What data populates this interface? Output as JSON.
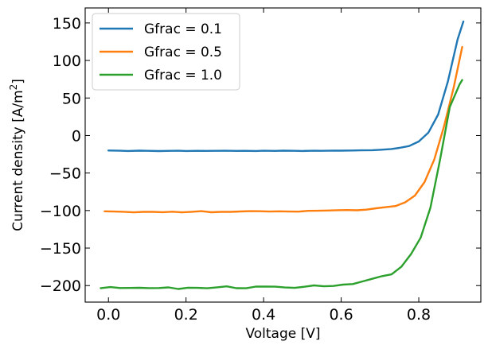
{
  "chart_data": {
    "type": "line",
    "xlabel": "Voltage [V]",
    "ylabel_main": "Current density [A/m",
    "ylabel_sup": "2",
    "ylabel_close": "]",
    "xlim": [
      -0.06,
      0.96
    ],
    "ylim": [
      -222,
      170
    ],
    "x_ticks": [
      0.0,
      0.2,
      0.4,
      0.6,
      0.8
    ],
    "x_tick_labels": [
      "0.0",
      "0.2",
      "0.4",
      "0.6",
      "0.8"
    ],
    "y_ticks": [
      -200,
      -150,
      -100,
      -50,
      0,
      50,
      100,
      150
    ],
    "y_tick_labels": [
      "−200",
      "−150",
      "−100",
      "−50",
      "0",
      "50",
      "100",
      "150"
    ],
    "grid": false,
    "legend_position": "top-left",
    "series": [
      {
        "name": "Gfrac = 0.1",
        "color": "#1f77b4",
        "x": [
          0.0,
          0.03,
          0.05,
          0.08,
          0.1,
          0.13,
          0.15,
          0.18,
          0.2,
          0.23,
          0.25,
          0.28,
          0.3,
          0.33,
          0.35,
          0.38,
          0.4,
          0.43,
          0.45,
          0.48,
          0.5,
          0.53,
          0.55,
          0.58,
          0.6,
          0.63,
          0.65,
          0.68,
          0.7,
          0.73,
          0.75,
          0.775,
          0.8,
          0.825,
          0.85,
          0.875,
          0.9,
          0.915
        ],
        "y": [
          -20,
          -20.3,
          -20.6,
          -20.2,
          -20.4,
          -20.7,
          -20.5,
          -20.3,
          -20.6,
          -20.4,
          -20.5,
          -20.4,
          -20.3,
          -20.5,
          -20.4,
          -20.6,
          -20.3,
          -20.5,
          -20.2,
          -20.4,
          -20.6,
          -20.3,
          -20.4,
          -20.1,
          -20.2,
          -20.0,
          -19.8,
          -19.5,
          -19.0,
          -18.0,
          -16.5,
          -14.0,
          -8.0,
          4.0,
          28.0,
          72.0,
          128.0,
          152.0
        ]
      },
      {
        "name": "Gfrac = 0.5",
        "color": "#ff7f0e",
        "x": [
          -0.01,
          0.015,
          0.04,
          0.065,
          0.09,
          0.115,
          0.14,
          0.165,
          0.19,
          0.215,
          0.24,
          0.265,
          0.29,
          0.315,
          0.34,
          0.365,
          0.39,
          0.415,
          0.44,
          0.465,
          0.49,
          0.515,
          0.54,
          0.565,
          0.59,
          0.615,
          0.64,
          0.665,
          0.69,
          0.715,
          0.74,
          0.765,
          0.79,
          0.815,
          0.84,
          0.865,
          0.89,
          0.912
        ],
        "y": [
          -101,
          -101.3,
          -101.6,
          -102.4,
          -101.7,
          -101.8,
          -102.2,
          -101.5,
          -102.4,
          -101.6,
          -100.8,
          -102.3,
          -101.7,
          -101.8,
          -101.2,
          -100.8,
          -100.9,
          -101.3,
          -101.0,
          -101.3,
          -101.4,
          -100.4,
          -100.3,
          -100.0,
          -99.5,
          -99.3,
          -99.6,
          -98.8,
          -97.0,
          -95.5,
          -94.0,
          -89.0,
          -80.0,
          -62.0,
          -32.0,
          12.0,
          64.0,
          118.0
        ]
      },
      {
        "name": "Gfrac = 1.0",
        "color": "#2ca02c",
        "x": [
          -0.02,
          0.005,
          0.03,
          0.055,
          0.08,
          0.105,
          0.13,
          0.155,
          0.18,
          0.205,
          0.23,
          0.255,
          0.28,
          0.305,
          0.33,
          0.355,
          0.38,
          0.405,
          0.43,
          0.455,
          0.48,
          0.505,
          0.53,
          0.555,
          0.58,
          0.605,
          0.63,
          0.655,
          0.68,
          0.705,
          0.73,
          0.755,
          0.78,
          0.805,
          0.83,
          0.855,
          0.88,
          0.905,
          0.912
        ],
        "y": [
          -203.5,
          -202.0,
          -203.2,
          -203.1,
          -202.9,
          -203.4,
          -203.3,
          -202.4,
          -204.5,
          -202.8,
          -203.0,
          -203.6,
          -202.3,
          -201.0,
          -203.5,
          -203.6,
          -201.3,
          -201.2,
          -201.4,
          -202.5,
          -203.0,
          -201.5,
          -199.8,
          -200.9,
          -200.5,
          -198.7,
          -198.0,
          -194.5,
          -191.0,
          -187.5,
          -185.0,
          -175.0,
          -158.0,
          -136.0,
          -96.0,
          -32.0,
          38.0,
          68.0,
          74.0
        ]
      }
    ]
  }
}
